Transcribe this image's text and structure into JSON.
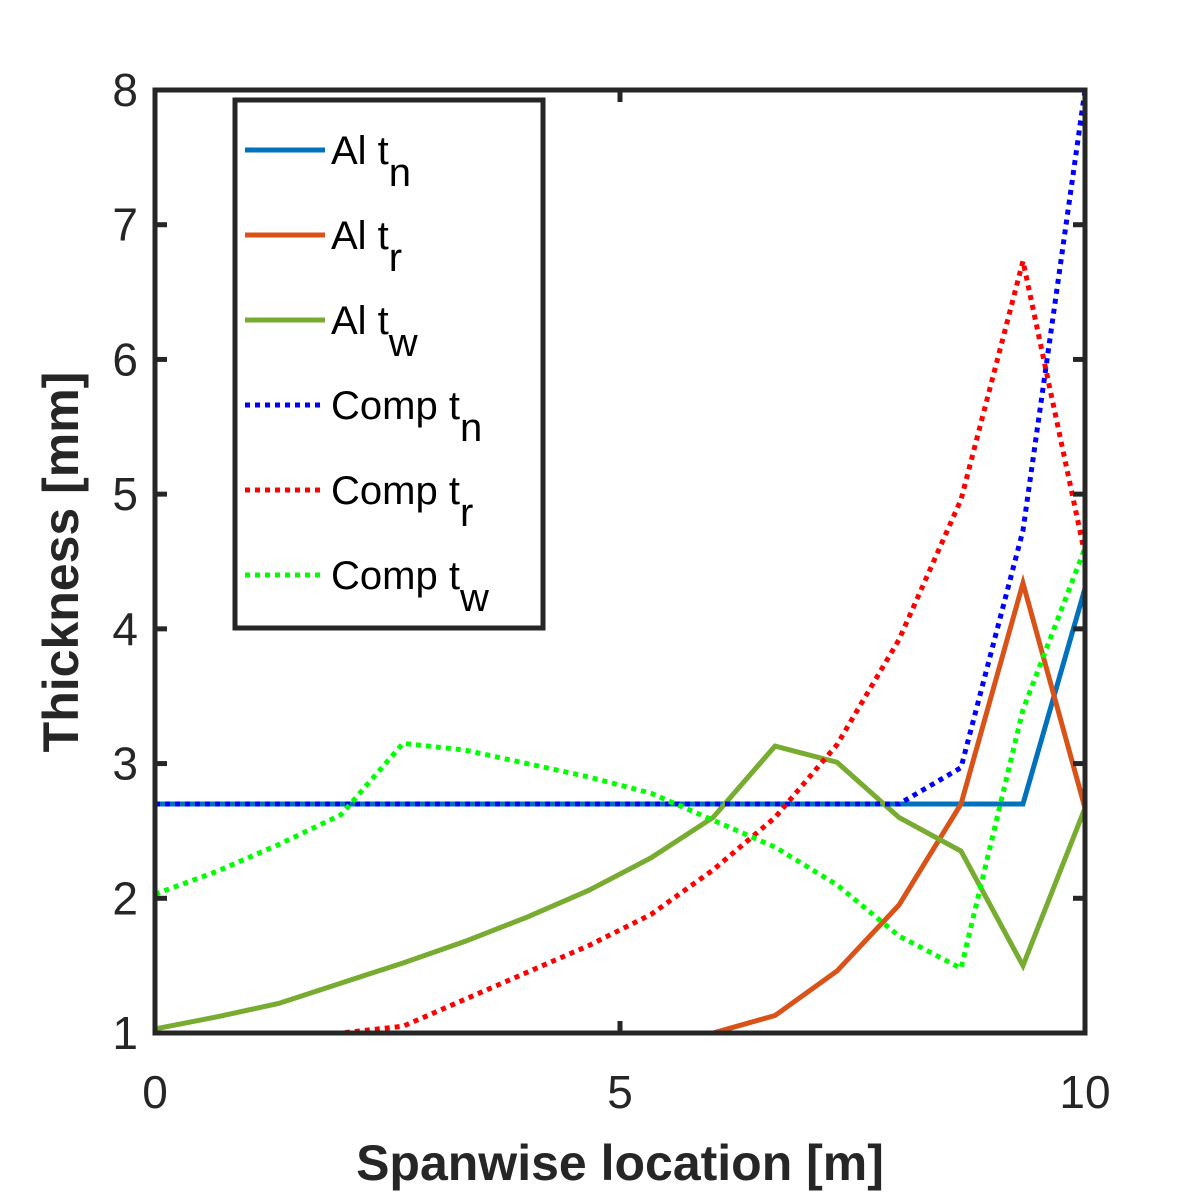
{
  "chart_data": {
    "type": "line",
    "x_label": "Spanwise location [m]",
    "y_label": "Thickness [mm]",
    "x": [
      0,
      0.667,
      1.333,
      2,
      2.667,
      3.333,
      4,
      4.667,
      5.333,
      6,
      6.667,
      7.333,
      8,
      8.667,
      9.333,
      10
    ],
    "series": [
      {
        "name": "Al t_n",
        "color": "#0072BD",
        "dash": false,
        "values": [
          2.7,
          2.7,
          2.7,
          2.7,
          2.7,
          2.7,
          2.7,
          2.7,
          2.7,
          2.7,
          2.7,
          2.7,
          2.7,
          2.7,
          2.7,
          4.3
        ]
      },
      {
        "name": "Al t_r",
        "color": "#D95319",
        "dash": false,
        "values": [
          1,
          1,
          1,
          1,
          1,
          1,
          1,
          1,
          1,
          1,
          1.13,
          1.46,
          1.95,
          2.7,
          4.34,
          2.67
        ]
      },
      {
        "name": "Al t_w",
        "color": "#77AC30",
        "dash": false,
        "values": [
          1.03,
          1.12,
          1.22,
          1.37,
          1.52,
          1.68,
          1.86,
          2.06,
          2.3,
          2.6,
          3.13,
          3.01,
          2.6,
          2.35,
          1.5,
          2.67
        ]
      },
      {
        "name": "Comp t_n",
        "color": "#0000FF",
        "dash": true,
        "values": [
          2.7,
          2.7,
          2.7,
          2.7,
          2.7,
          2.7,
          2.7,
          2.7,
          2.7,
          2.7,
          2.7,
          2.7,
          2.7,
          2.97,
          4.73,
          8.0
        ]
      },
      {
        "name": "Comp t_r",
        "color": "#FF0000",
        "dash": true,
        "values": [
          1,
          1,
          1,
          1,
          1.05,
          1.25,
          1.45,
          1.65,
          1.88,
          2.21,
          2.6,
          3.14,
          3.92,
          4.96,
          6.73,
          4.55
        ]
      },
      {
        "name": "Comp t_w",
        "color": "#00FF00",
        "dash": true,
        "values": [
          2.03,
          2.2,
          2.4,
          2.62,
          3.15,
          3.1,
          3.0,
          2.9,
          2.78,
          2.58,
          2.38,
          2.1,
          1.72,
          1.48,
          3.4,
          4.6
        ]
      }
    ],
    "xlim": [
      0,
      10
    ],
    "xticks": [
      0,
      5,
      10
    ],
    "ylim": [
      1,
      8
    ],
    "yticks": [
      1,
      2,
      3,
      4,
      5,
      6,
      7,
      8
    ],
    "legend": "upper left"
  }
}
